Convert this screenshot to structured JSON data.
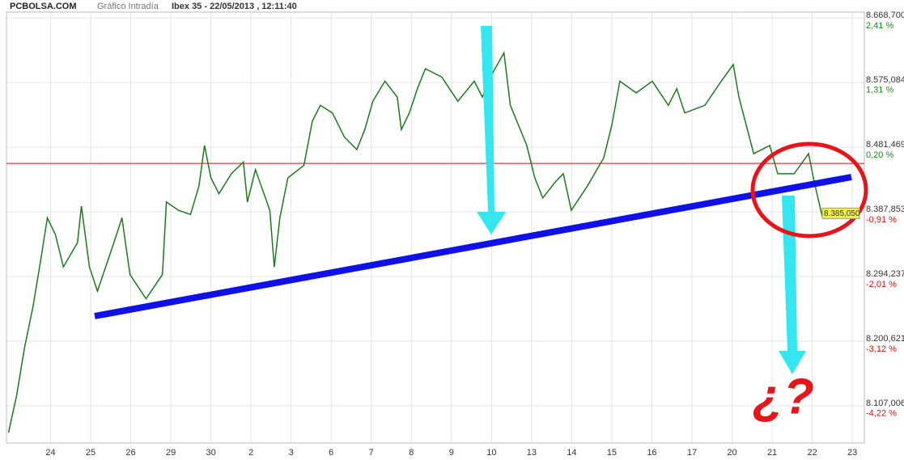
{
  "chart_data": {
    "type": "line",
    "site": "PCBOLSA.COM",
    "chart_kind": "Gráfico Intradía",
    "title": "Ibex 35 - 22/05/2013 , 12:11:40",
    "annotation": "¿?",
    "color": "#1b7a1b",
    "grid": true,
    "x": [
      -1.05,
      -0.85,
      -0.65,
      -0.44,
      -0.24,
      -0.08,
      0.12,
      0.32,
      0.67,
      0.77,
      0.97,
      1.17,
      1.58,
      1.78,
      1.98,
      2.38,
      2.79,
      2.89,
      3.19,
      3.49,
      3.7,
      3.84,
      4.0,
      4.2,
      4.51,
      4.81,
      4.91,
      5.11,
      5.47,
      5.58,
      5.72,
      5.92,
      6.32,
      6.53,
      6.73,
      7.03,
      7.33,
      7.64,
      7.84,
      8.04,
      8.34,
      8.65,
      8.75,
      8.95,
      9.15,
      9.35,
      9.76,
      10.16,
      10.57,
      10.77,
      10.97,
      11.31,
      11.47,
      11.88,
      12.08,
      12.28,
      12.59,
      12.79,
      12.99,
      13.39,
      13.8,
      14.0,
      14.2,
      14.61,
      15.01,
      15.41,
      15.62,
      15.82,
      16.32,
      16.73,
      17.03,
      17.17,
      17.54,
      17.94,
      18.14,
      18.55,
      18.91,
      19.05,
      19.25
    ],
    "values": [
      8068,
      8121,
      8191,
      8250,
      8320,
      8379,
      8355,
      8308,
      8343,
      8396,
      8308,
      8273,
      8343,
      8379,
      8297,
      8262,
      8297,
      8402,
      8390,
      8384,
      8425,
      8484,
      8437,
      8414,
      8443,
      8460,
      8402,
      8449,
      8390,
      8308,
      8379,
      8437,
      8455,
      8519,
      8542,
      8531,
      8496,
      8478,
      8507,
      8548,
      8577,
      8554,
      8507,
      8531,
      8566,
      8595,
      8583,
      8548,
      8577,
      8554,
      8583,
      8618,
      8542,
      8484,
      8437,
      8408,
      8431,
      8443,
      8390,
      8425,
      8466,
      8513,
      8577,
      8560,
      8577,
      8542,
      8566,
      8531,
      8542,
      8577,
      8601,
      8554,
      8472,
      8484,
      8443,
      8443,
      8472,
      8431,
      8381
    ],
    "xlim": [
      -1.1,
      20.3
    ],
    "xticks": [
      {
        "value": 0,
        "label": "24"
      },
      {
        "value": 1,
        "label": "25"
      },
      {
        "value": 2,
        "label": "26"
      },
      {
        "value": 3,
        "label": "29"
      },
      {
        "value": 4,
        "label": "30"
      },
      {
        "value": 5,
        "label": "2"
      },
      {
        "value": 6,
        "label": "3"
      },
      {
        "value": 7,
        "label": "6"
      },
      {
        "value": 8,
        "label": "7"
      },
      {
        "value": 9,
        "label": "8"
      },
      {
        "value": 10,
        "label": "9"
      },
      {
        "value": 11,
        "label": "10"
      },
      {
        "value": 12,
        "label": "13"
      },
      {
        "value": 13,
        "label": "14"
      },
      {
        "value": 14,
        "label": "15"
      },
      {
        "value": 15,
        "label": "16"
      },
      {
        "value": 16,
        "label": "17"
      },
      {
        "value": 17,
        "label": "20"
      },
      {
        "value": 18,
        "label": "21"
      },
      {
        "value": 19,
        "label": "22"
      },
      {
        "value": 20,
        "label": "23"
      }
    ],
    "ylim": [
      8053,
      8677
    ],
    "yticks": [
      {
        "value": 8668.7,
        "label": "8.668,700"
      },
      {
        "value": 8575.084,
        "label": "8.575,084"
      },
      {
        "value": 8481.469,
        "label": "8.481,469"
      },
      {
        "value": 8387.853,
        "label": "8.387,853"
      },
      {
        "value": 8294.237,
        "label": "8.294,237"
      },
      {
        "value": 8200.621,
        "label": "8.200,621"
      },
      {
        "value": 8107.006,
        "label": "8.107,006"
      }
    ],
    "y2lim": [
      -4.86,
      2.51
    ],
    "y2ticks": [
      {
        "value": 2.41,
        "label": "2,41 %"
      },
      {
        "value": 1.31,
        "label": "1,31 %"
      },
      {
        "value": 0.2,
        "label": "0,20 %"
      },
      {
        "value": -0.91,
        "label": "-0,91 %"
      },
      {
        "value": -2.01,
        "label": "-2,01 %"
      },
      {
        "value": -3.12,
        "label": "-3,12 %"
      },
      {
        "value": -4.22,
        "label": "-4,22 %"
      }
    ],
    "reference_line": 8458,
    "last_price": {
      "value": 8385.05,
      "label": "8.385,050"
    }
  }
}
